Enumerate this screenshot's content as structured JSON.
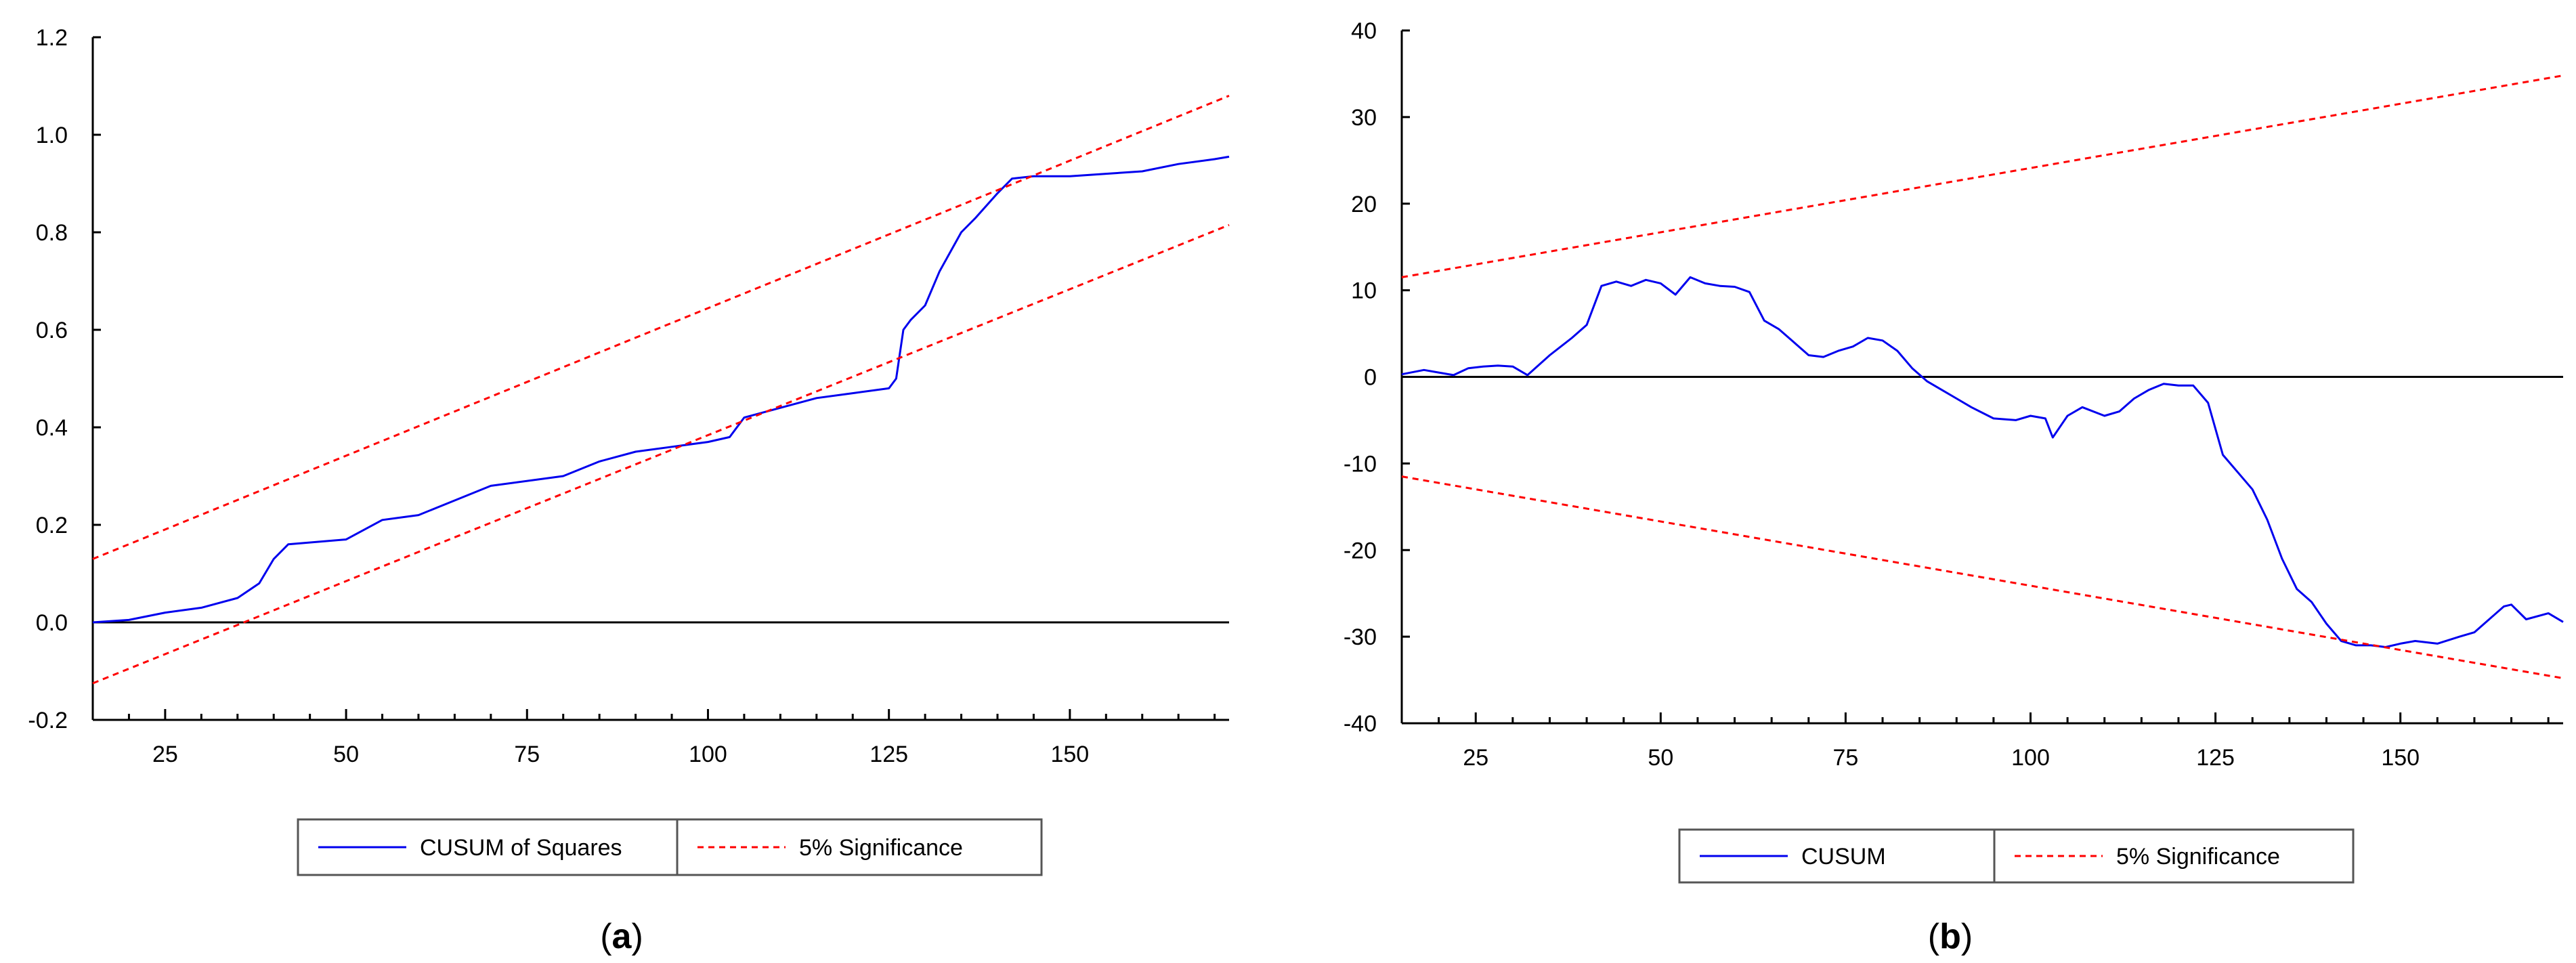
{
  "panels": [
    {
      "caption": "a",
      "legend": {
        "items": [
          "CUSUM of Squares",
          "5% Significance"
        ]
      }
    },
    {
      "caption": "b",
      "legend": {
        "items": [
          "CUSUM",
          "5% Significance"
        ]
      }
    }
  ],
  "colors": {
    "series": "#0000ee",
    "significance": "#ff0000",
    "axis": "#000000"
  },
  "chart_data": [
    {
      "type": "line",
      "title": "",
      "xlabel": "",
      "ylabel": "",
      "xlim": [
        15,
        172
      ],
      "ylim": [
        -0.2,
        1.2
      ],
      "xticks": [
        25,
        50,
        75,
        100,
        125,
        150
      ],
      "xtick_labels": [
        "25",
        "50",
        "75",
        "100",
        "125",
        "150"
      ],
      "yticks": [
        -0.2,
        0.0,
        0.2,
        0.4,
        0.6,
        0.8,
        1.0,
        1.2
      ],
      "ytick_labels": [
        "-0.2",
        "0.0",
        "0.2",
        "0.4",
        "0.6",
        "0.8",
        "1.0",
        "1.2"
      ],
      "zero_line": true,
      "grid": false,
      "legend_position": "bottom",
      "series": [
        {
          "name": "CUSUM of Squares",
          "style": "solid",
          "x": [
            15,
            20,
            25,
            30,
            35,
            38,
            40,
            42,
            50,
            55,
            60,
            65,
            70,
            80,
            85,
            90,
            95,
            100,
            103,
            105,
            110,
            115,
            120,
            125,
            126,
            127,
            128,
            130,
            132,
            135,
            137,
            140,
            142,
            145,
            150,
            155,
            160,
            165,
            170,
            172
          ],
          "y": [
            0.0,
            0.005,
            0.02,
            0.03,
            0.05,
            0.08,
            0.13,
            0.16,
            0.17,
            0.21,
            0.22,
            0.25,
            0.28,
            0.3,
            0.33,
            0.35,
            0.36,
            0.37,
            0.38,
            0.42,
            0.44,
            0.46,
            0.47,
            0.48,
            0.5,
            0.6,
            0.62,
            0.65,
            0.72,
            0.8,
            0.83,
            0.88,
            0.91,
            0.915,
            0.915,
            0.92,
            0.925,
            0.94,
            0.95,
            0.955
          ]
        },
        {
          "name": "5% Significance",
          "style": "dashed",
          "x": [
            15,
            172
          ],
          "y": [
            0.13,
            1.08
          ]
        },
        {
          "name": "5% Significance",
          "style": "dashed",
          "x": [
            15,
            172
          ],
          "y": [
            -0.125,
            0.815
          ]
        }
      ]
    },
    {
      "type": "line",
      "title": "",
      "xlabel": "",
      "ylabel": "",
      "xlim": [
        15,
        172
      ],
      "ylim": [
        -40,
        40
      ],
      "xticks": [
        25,
        50,
        75,
        100,
        125,
        150
      ],
      "xtick_labels": [
        "25",
        "50",
        "75",
        "100",
        "125",
        "150"
      ],
      "yticks": [
        -40,
        -30,
        -20,
        -10,
        0,
        10,
        20,
        30,
        40
      ],
      "ytick_labels": [
        "-40",
        "-30",
        "-20",
        "-10",
        "0",
        "10",
        "20",
        "30",
        "40"
      ],
      "zero_line": true,
      "grid": false,
      "legend_position": "bottom",
      "series": [
        {
          "name": "CUSUM",
          "style": "solid",
          "x": [
            15,
            18,
            20,
            22,
            24,
            26,
            28,
            30,
            32,
            35,
            38,
            40,
            42,
            44,
            46,
            48,
            50,
            52,
            54,
            56,
            58,
            60,
            62,
            64,
            66,
            68,
            70,
            72,
            74,
            76,
            78,
            80,
            82,
            84,
            86,
            88,
            90,
            92,
            95,
            98,
            100,
            102,
            103,
            105,
            107,
            110,
            112,
            114,
            116,
            118,
            120,
            122,
            124,
            126,
            128,
            130,
            132,
            134,
            136,
            138,
            140,
            142,
            144,
            146,
            148,
            150,
            152,
            155,
            158,
            160,
            162,
            164,
            165,
            167,
            170,
            172
          ],
          "y": [
            0.3,
            0.8,
            0.5,
            0.2,
            1.0,
            1.2,
            1.3,
            1.2,
            0.2,
            2.5,
            4.5,
            6.0,
            10.5,
            11.0,
            10.5,
            11.2,
            10.8,
            9.5,
            11.5,
            10.8,
            10.5,
            10.4,
            9.8,
            6.5,
            5.5,
            4.0,
            2.5,
            2.3,
            3.0,
            3.5,
            4.5,
            4.2,
            3.0,
            1.0,
            -0.5,
            -1.5,
            -2.5,
            -3.5,
            -4.8,
            -5.0,
            -4.5,
            -4.8,
            -7.0,
            -4.5,
            -3.5,
            -4.5,
            -4.0,
            -2.5,
            -1.5,
            -0.8,
            -1.0,
            -1.0,
            -3.0,
            -9.0,
            -11.0,
            -13.0,
            -16.5,
            -21.0,
            -24.5,
            -26.0,
            -28.5,
            -30.5,
            -31.0,
            -31.0,
            -31.2,
            -30.8,
            -30.5,
            -30.8,
            -30.0,
            -29.5,
            -28.0,
            -26.5,
            -26.3,
            -28.0,
            -27.3,
            -28.3
          ]
        },
        {
          "name": "5% Significance",
          "style": "dashed",
          "x": [
            15,
            172
          ],
          "y": [
            11.5,
            34.8
          ]
        },
        {
          "name": "5% Significance",
          "style": "dashed",
          "x": [
            15,
            172
          ],
          "y": [
            -11.5,
            -34.8
          ]
        }
      ]
    }
  ]
}
